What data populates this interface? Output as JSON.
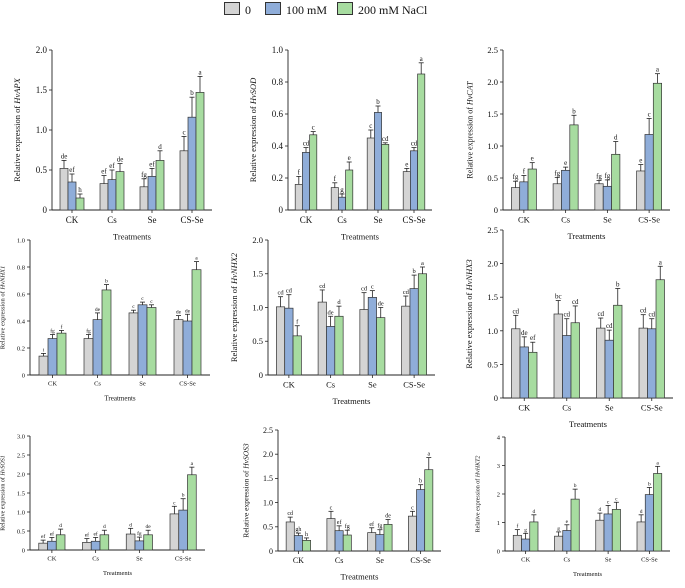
{
  "legend": [
    {
      "label": "0",
      "color": "#d4d4d4"
    },
    {
      "label": "100 mM",
      "color": "#8fadd9"
    },
    {
      "label": "200 mM NaCl",
      "color": "#a7dca0"
    }
  ],
  "chart_data": [
    {
      "type": "bar",
      "title": "",
      "ylabel": "Relative expression of HvAPX",
      "xlabel": "Treatments",
      "categories": [
        "CK",
        "Cs",
        "Se",
        "CS-Se"
      ],
      "ylim": [
        0,
        2.0
      ],
      "yticks": [
        "0",
        "0.5",
        "1.0",
        "1.5",
        "2.0"
      ],
      "series": [
        {
          "name": "0",
          "values": [
            0.52,
            0.33,
            0.29,
            0.74
          ],
          "errors": [
            0.1,
            0.1,
            0.1,
            0.18
          ],
          "letters": [
            "de",
            "ef",
            "fg",
            "c"
          ]
        },
        {
          "name": "100 mM",
          "values": [
            0.35,
            0.38,
            0.42,
            1.16
          ],
          "errors": [
            0.1,
            0.12,
            0.1,
            0.25
          ],
          "letters": [
            "ef",
            "ef",
            "ef",
            "b"
          ]
        },
        {
          "name": "200 mM NaCl",
          "values": [
            0.15,
            0.48,
            0.62,
            1.47
          ],
          "errors": [
            0.05,
            0.1,
            0.12,
            0.2
          ],
          "letters": [
            "h",
            "de",
            "d",
            "a"
          ]
        }
      ]
    },
    {
      "type": "bar",
      "title": "",
      "ylabel": "Relative expression of HvSOD",
      "xlabel": "Treatments",
      "categories": [
        "CK",
        "Cs",
        "Se",
        "CS-Se"
      ],
      "ylim": [
        0,
        1.0
      ],
      "yticks": [
        "0",
        "0.2",
        "0.4",
        "0.6",
        "0.8",
        "1.0"
      ],
      "series": [
        {
          "name": "0",
          "values": [
            0.16,
            0.14,
            0.45,
            0.24
          ],
          "errors": [
            0.05,
            0.03,
            0.05,
            0.02
          ],
          "letters": [
            "f",
            "f",
            "c",
            "e"
          ]
        },
        {
          "name": "100 mM",
          "values": [
            0.36,
            0.08,
            0.61,
            0.37
          ],
          "errors": [
            0.03,
            0.02,
            0.04,
            0.02
          ],
          "letters": [
            "cd",
            "g",
            "b",
            "cd"
          ]
        },
        {
          "name": "200 mM NaCl",
          "values": [
            0.47,
            0.25,
            0.41,
            0.85
          ],
          "errors": [
            0.02,
            0.05,
            0.01,
            0.07
          ],
          "letters": [
            "c",
            "e",
            "cd",
            "a"
          ]
        }
      ]
    },
    {
      "type": "bar",
      "title": "",
      "ylabel": "Relative expression of HvCAT",
      "xlabel": "Treatments",
      "categories": [
        "CK",
        "Cs",
        "Se",
        "CS-Se"
      ],
      "ylim": [
        0,
        2.5
      ],
      "yticks": [
        "0",
        "0.5",
        "1.0",
        "1.5",
        "2.0",
        "2.5"
      ],
      "series": [
        {
          "name": "0",
          "values": [
            0.35,
            0.41,
            0.41,
            0.61
          ],
          "errors": [
            0.1,
            0.1,
            0.05,
            0.1
          ],
          "letters": [
            "fg",
            "fg",
            "fg",
            "e"
          ]
        },
        {
          "name": "100 mM",
          "values": [
            0.44,
            0.62,
            0.37,
            1.18
          ],
          "errors": [
            0.1,
            0.05,
            0.1,
            0.25
          ],
          "letters": [
            "f",
            "e",
            "fg",
            "c"
          ]
        },
        {
          "name": "200 mM NaCl",
          "values": [
            0.64,
            1.33,
            0.87,
            1.98
          ],
          "errors": [
            0.1,
            0.15,
            0.2,
            0.15
          ],
          "letters": [
            "e",
            "b",
            "d",
            "a"
          ]
        }
      ]
    },
    {
      "type": "bar",
      "title": "",
      "ylabel": "Relative expression of HvNHX1",
      "xlabel": "Treatments",
      "categories": [
        "CK",
        "Cs",
        "Se",
        "CS-Se"
      ],
      "ylim": [
        0,
        1.0
      ],
      "yticks": [
        "0",
        "0.2",
        "0.4",
        "0.6",
        "0.8",
        "1.0"
      ],
      "series": [
        {
          "name": "0",
          "values": [
            0.14,
            0.27,
            0.46,
            0.41
          ],
          "errors": [
            0.02,
            0.03,
            0.02,
            0.03
          ],
          "letters": [
            "i",
            "fg",
            "c",
            "de"
          ]
        },
        {
          "name": "100 mM",
          "values": [
            0.27,
            0.41,
            0.52,
            0.4
          ],
          "errors": [
            0.03,
            0.05,
            0.02,
            0.05
          ],
          "letters": [
            "fg",
            "de",
            "c",
            "de"
          ]
        },
        {
          "name": "200 mM NaCl",
          "values": [
            0.31,
            0.63,
            0.5,
            0.78
          ],
          "errors": [
            0.02,
            0.04,
            0.02,
            0.06
          ],
          "letters": [
            "f",
            "b",
            "c",
            "a"
          ]
        }
      ]
    },
    {
      "type": "bar",
      "title": "",
      "ylabel": "Relative expression of HvNHX2",
      "xlabel": "Treatments",
      "categories": [
        "CK",
        "Cs",
        "Se",
        "CS-Se"
      ],
      "ylim": [
        0,
        2.0
      ],
      "yticks": [
        "0",
        "0.5",
        "1.0",
        "1.5",
        "2.0"
      ],
      "series": [
        {
          "name": "0",
          "values": [
            1.01,
            1.08,
            0.97,
            1.02
          ],
          "errors": [
            0.15,
            0.18,
            0.25,
            0.15
          ],
          "letters": [
            "cd",
            "cd",
            "cd",
            "cd"
          ]
        },
        {
          "name": "100 mM",
          "values": [
            0.99,
            0.72,
            1.15,
            1.28
          ],
          "errors": [
            0.2,
            0.15,
            0.1,
            0.2
          ],
          "letters": [
            "cd",
            "de",
            "c",
            "b"
          ]
        },
        {
          "name": "200 mM NaCl",
          "values": [
            0.58,
            0.87,
            0.85,
            1.5
          ],
          "errors": [
            0.15,
            0.15,
            0.15,
            0.1
          ],
          "letters": [
            "f",
            "d",
            "de",
            "a"
          ]
        }
      ]
    },
    {
      "type": "bar",
      "title": "",
      "ylabel": "Relative expression of HvNHX3",
      "xlabel": "Treatments",
      "categories": [
        "CK",
        "Cs",
        "Se",
        "CS-Se"
      ],
      "ylim": [
        0,
        2.5
      ],
      "yticks": [
        "0",
        "0.5",
        "1.0",
        "1.5",
        "2.0",
        "2.5"
      ],
      "series": [
        {
          "name": "0",
          "values": [
            1.03,
            1.25,
            1.04,
            1.04
          ],
          "errors": [
            0.2,
            0.2,
            0.15,
            0.2
          ],
          "letters": [
            "cd",
            "bc",
            "cd",
            "cd"
          ]
        },
        {
          "name": "100 mM",
          "values": [
            0.76,
            0.93,
            0.86,
            1.03
          ],
          "errors": [
            0.15,
            0.25,
            0.15,
            0.15
          ],
          "letters": [
            "de",
            "cd",
            "cd",
            "cd"
          ]
        },
        {
          "name": "200 mM NaCl",
          "values": [
            0.68,
            1.12,
            1.38,
            1.76
          ],
          "errors": [
            0.15,
            0.25,
            0.25,
            0.2
          ],
          "letters": [
            "ef",
            "cd",
            "b",
            "a"
          ]
        }
      ]
    },
    {
      "type": "bar",
      "title": "",
      "ylabel": "Relative expression of HvSOS1",
      "xlabel": "Treatments",
      "categories": [
        "CK",
        "Cs",
        "Se",
        "CS-Se"
      ],
      "ylim": [
        0,
        3.0
      ],
      "yticks": [
        "0",
        "0.5",
        "1.0",
        "1.5",
        "2.0",
        "2.5",
        "3.0"
      ],
      "series": [
        {
          "name": "0",
          "values": [
            0.18,
            0.2,
            0.42,
            0.95
          ],
          "errors": [
            0.08,
            0.1,
            0.15,
            0.2
          ],
          "letters": [
            "ef",
            "ef",
            "d",
            "c"
          ]
        },
        {
          "name": "100 mM",
          "values": [
            0.23,
            0.23,
            0.24,
            1.05
          ],
          "errors": [
            0.1,
            0.1,
            0.1,
            0.3
          ],
          "letters": [
            "ef",
            "ef",
            "fg",
            "b"
          ]
        },
        {
          "name": "200 mM NaCl",
          "values": [
            0.4,
            0.4,
            0.4,
            1.98
          ],
          "errors": [
            0.15,
            0.12,
            0.12,
            0.2
          ],
          "letters": [
            "d",
            "d",
            "de",
            "a"
          ]
        }
      ]
    },
    {
      "type": "bar",
      "title": "",
      "ylabel": "Relative expression of HvSOS3",
      "xlabel": "Treatments",
      "categories": [
        "CK",
        "Cs",
        "Se",
        "CS-Se"
      ],
      "ylim": [
        0,
        2.5
      ],
      "yticks": [
        "0",
        "0.5",
        "1.0",
        "1.5",
        "2.0",
        "2.5"
      ],
      "series": [
        {
          "name": "0",
          "values": [
            0.6,
            0.67,
            0.38,
            0.72
          ],
          "errors": [
            0.1,
            0.15,
            0.1,
            0.1
          ],
          "letters": [
            "cd",
            "c",
            "ef",
            "c"
          ]
        },
        {
          "name": "100 mM",
          "values": [
            0.32,
            0.42,
            0.34,
            1.27
          ],
          "errors": [
            0.05,
            0.1,
            0.1,
            0.1
          ],
          "letters": [
            "gh",
            "ef",
            "fg",
            "b"
          ]
        },
        {
          "name": "200 mM NaCl",
          "values": [
            0.22,
            0.33,
            0.55,
            1.68
          ],
          "errors": [
            0.05,
            0.1,
            0.1,
            0.25
          ],
          "letters": [
            "h",
            "fg",
            "de",
            "a"
          ]
        }
      ]
    },
    {
      "type": "bar",
      "title": "",
      "ylabel": "Relative expression of HvHKT2",
      "xlabel": "Treatments",
      "categories": [
        "CK",
        "Cs",
        "Se",
        "CS-Se"
      ],
      "ylim": [
        0,
        4.0
      ],
      "yticks": [
        "0",
        "1",
        "2",
        "3",
        "4"
      ],
      "series": [
        {
          "name": "0",
          "values": [
            0.55,
            0.52,
            1.08,
            1.02
          ],
          "errors": [
            0.2,
            0.15,
            0.25,
            0.25
          ],
          "letters": [
            "f",
            "g",
            "d",
            "d"
          ]
        },
        {
          "name": "100 mM",
          "values": [
            0.42,
            0.72,
            1.3,
            1.98
          ],
          "errors": [
            0.2,
            0.2,
            0.3,
            0.25
          ],
          "letters": [
            "g",
            "e",
            "c",
            "b"
          ]
        },
        {
          "name": "200 mM NaCl",
          "values": [
            1.02,
            1.82,
            1.46,
            2.72
          ],
          "errors": [
            0.25,
            0.35,
            0.25,
            0.25
          ],
          "letters": [
            "d",
            "b",
            "c",
            "a"
          ]
        }
      ]
    }
  ]
}
